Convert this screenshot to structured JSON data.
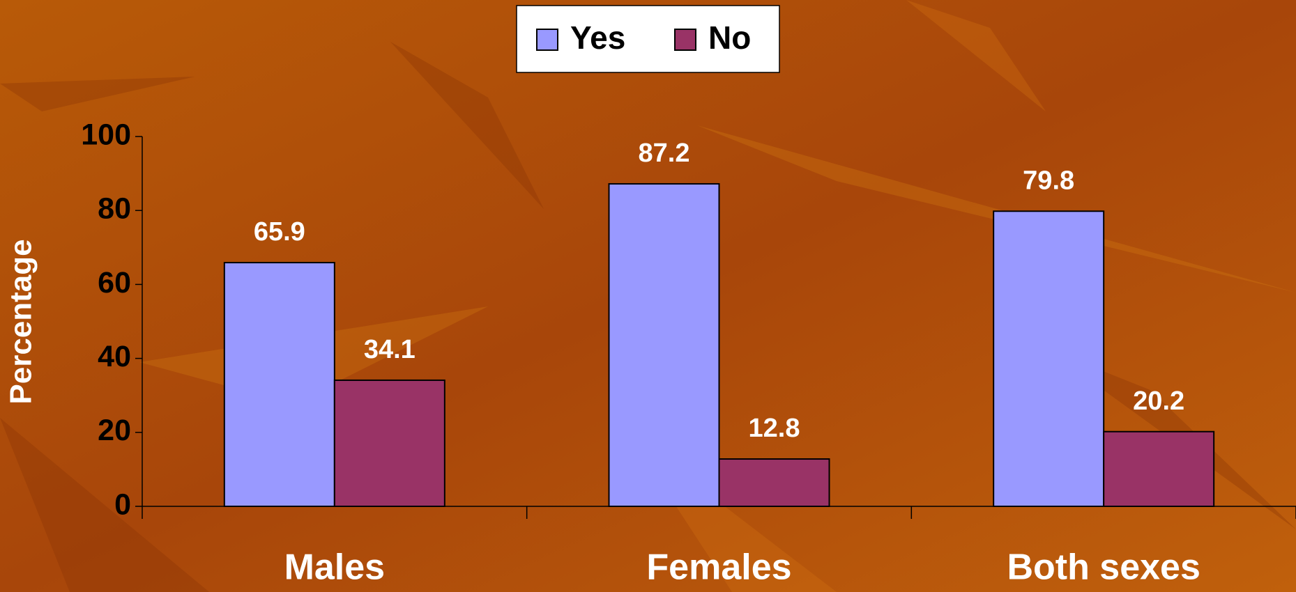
{
  "chart_data": {
    "type": "bar",
    "categories": [
      "Males",
      "Females",
      "Both sexes"
    ],
    "series": [
      {
        "name": "Yes",
        "color": "#9999ff",
        "values": [
          65.9,
          87.2,
          79.8
        ]
      },
      {
        "name": "No",
        "color": "#993366",
        "values": [
          34.1,
          12.8,
          20.2
        ]
      }
    ],
    "y_label": "Percentage",
    "ylim": [
      0,
      100
    ],
    "yticks": [
      0,
      20,
      40,
      60,
      80,
      100
    ],
    "legend": "top",
    "grid": false
  }
}
